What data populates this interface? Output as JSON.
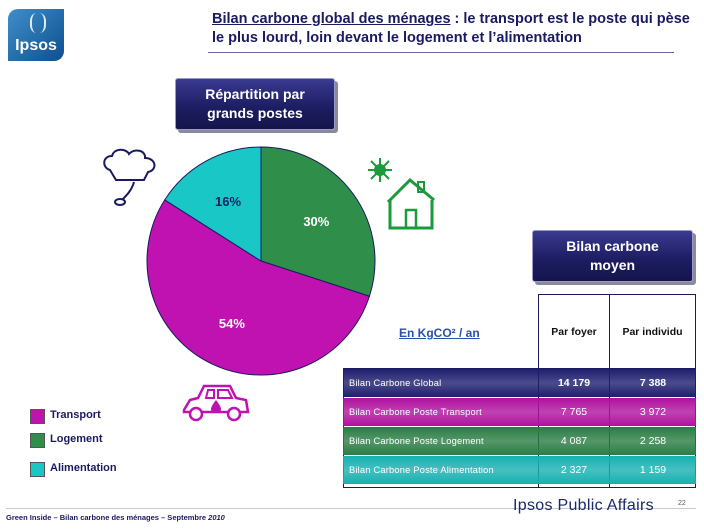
{
  "logo": {
    "text": "Ipsos"
  },
  "title": {
    "underlined": "Bilan carbone global des ménages",
    "rest": " : le transport est le poste qui pèse le plus lourd, loin devant le logement et l’alimentation"
  },
  "boxes": {
    "repartition": [
      "Répartition par",
      "grands postes"
    ],
    "bilan": [
      "Bilan carbone",
      "moyen"
    ]
  },
  "chart_data": {
    "type": "pie",
    "slices": [
      {
        "name": "Logement",
        "value": 30,
        "label": "30%",
        "color": "#2f8f4a"
      },
      {
        "name": "Transport",
        "value": 54,
        "label": "54%",
        "color": "#c012b0"
      },
      {
        "name": "Alimentation",
        "value": 16,
        "label": "16%",
        "color": "#19c7c7"
      }
    ]
  },
  "legend": [
    {
      "label": "Transport",
      "color": "#c012b0"
    },
    {
      "label": "Logement",
      "color": "#2f8f4a"
    },
    {
      "label": "Alimentation",
      "color": "#19c7c7"
    }
  ],
  "table": {
    "unit": "En KgCO² / an",
    "headers": [
      "Par foyer",
      "Par individu"
    ],
    "rows": [
      {
        "label": "Bilan Carbone Global",
        "foyer": "14 179",
        "individu": "7 388",
        "color": "#1e1e6e"
      },
      {
        "label": "Bilan Carbone Poste Transport",
        "foyer": "7 765",
        "individu": "3 972",
        "color": "#b0129e"
      },
      {
        "label": "Bilan Carbone Poste Logement",
        "foyer": "4 087",
        "individu": "2 258",
        "color": "#2a7d44"
      },
      {
        "label": "Bilan Carbone Poste Alimentation",
        "foyer": "2 327",
        "individu": "1 159",
        "color": "#17b0b0"
      }
    ]
  },
  "footer": {
    "text": "Green Inside – Bilan carbone des ménages – Septembre",
    "year": "2010",
    "brand": "Ipsos Public Affairs",
    "page": "22"
  }
}
